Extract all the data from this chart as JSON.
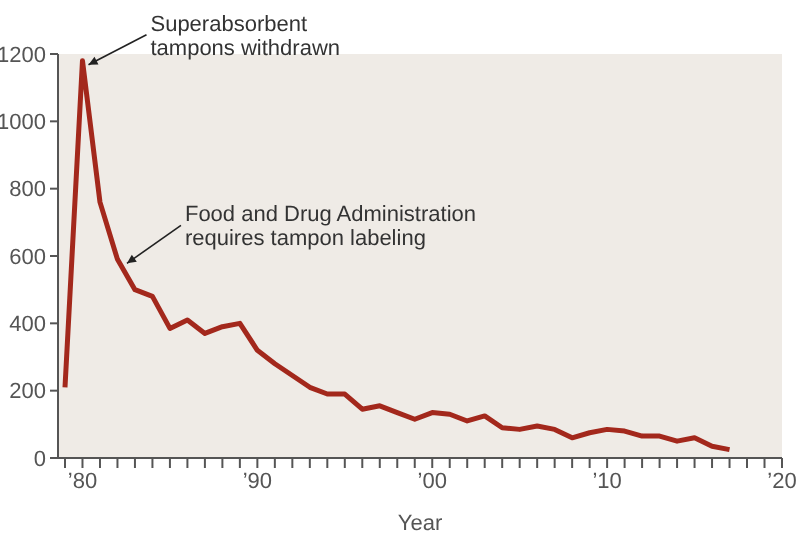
{
  "chart_data": {
    "type": "line",
    "xlabel": "Year",
    "x": [
      1979,
      1980,
      1981,
      1982,
      1983,
      1984,
      1985,
      1986,
      1987,
      1988,
      1989,
      1990,
      1991,
      1992,
      1993,
      1994,
      1995,
      1996,
      1997,
      1998,
      1999,
      2000,
      2001,
      2002,
      2003,
      2004,
      2005,
      2006,
      2007,
      2008,
      2009,
      2010,
      2011,
      2012,
      2013,
      2014,
      2015,
      2016,
      2017
    ],
    "series": [
      {
        "color": "#a3281c",
        "values": [
          210,
          1180,
          760,
          590,
          500,
          480,
          385,
          410,
          370,
          390,
          400,
          320,
          280,
          245,
          210,
          190,
          190,
          145,
          155,
          135,
          115,
          135,
          130,
          110,
          125,
          90,
          85,
          95,
          85,
          60,
          75,
          85,
          80,
          65,
          65,
          50,
          60,
          35,
          25
        ]
      }
    ],
    "xlim": [
      1978.6,
      2020
    ],
    "xticks": [
      {
        "value": 1979,
        "label": null
      },
      {
        "value": 1980,
        "label": "’80"
      },
      {
        "value": 1981,
        "label": null
      },
      {
        "value": 1982,
        "label": null
      },
      {
        "value": 1983,
        "label": null
      },
      {
        "value": 1984,
        "label": null
      },
      {
        "value": 1985,
        "label": null
      },
      {
        "value": 1986,
        "label": null
      },
      {
        "value": 1987,
        "label": null
      },
      {
        "value": 1988,
        "label": null
      },
      {
        "value": 1989,
        "label": null
      },
      {
        "value": 1990,
        "label": "’90"
      },
      {
        "value": 1991,
        "label": null
      },
      {
        "value": 1992,
        "label": null
      },
      {
        "value": 1993,
        "label": null
      },
      {
        "value": 1994,
        "label": null
      },
      {
        "value": 1995,
        "label": null
      },
      {
        "value": 1996,
        "label": null
      },
      {
        "value": 1997,
        "label": null
      },
      {
        "value": 1998,
        "label": null
      },
      {
        "value": 1999,
        "label": null
      },
      {
        "value": 2000,
        "label": "’00"
      },
      {
        "value": 2001,
        "label": null
      },
      {
        "value": 2002,
        "label": null
      },
      {
        "value": 2003,
        "label": null
      },
      {
        "value": 2004,
        "label": null
      },
      {
        "value": 2005,
        "label": null
      },
      {
        "value": 2006,
        "label": null
      },
      {
        "value": 2007,
        "label": null
      },
      {
        "value": 2008,
        "label": null
      },
      {
        "value": 2009,
        "label": null
      },
      {
        "value": 2010,
        "label": "’10"
      },
      {
        "value": 2011,
        "label": null
      },
      {
        "value": 2012,
        "label": null
      },
      {
        "value": 2013,
        "label": null
      },
      {
        "value": 2014,
        "label": null
      },
      {
        "value": 2015,
        "label": null
      },
      {
        "value": 2016,
        "label": null
      },
      {
        "value": 2017,
        "label": null
      },
      {
        "value": 2018,
        "label": null
      },
      {
        "value": 2019,
        "label": null
      },
      {
        "value": 2020,
        "label": "’20"
      }
    ],
    "ylim": [
      0,
      1200
    ],
    "yticks": [
      0,
      200,
      400,
      600,
      800,
      1000,
      1200
    ],
    "marker": "none",
    "line_style": "solid",
    "annotations": [
      {
        "text": "Superabsorbent\ntampons withdrawn",
        "x": 1980,
        "y": 1180
      },
      {
        "text": "Food and Drug Administration\nrequires tampon labeling",
        "x": 1982.2,
        "y": 590
      }
    ]
  }
}
